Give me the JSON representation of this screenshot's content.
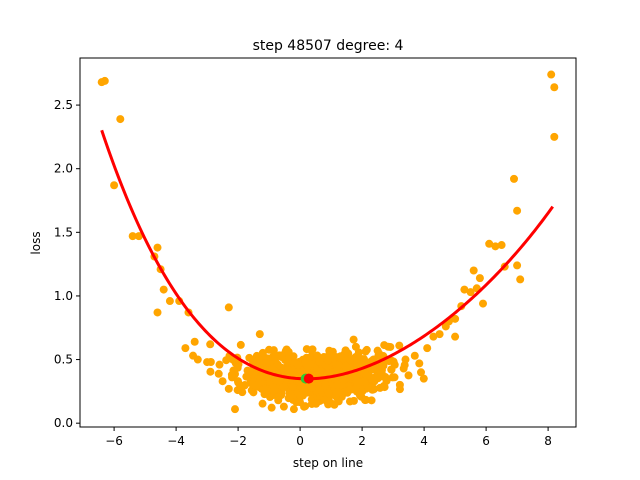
{
  "chart_data": {
    "type": "scatter",
    "title": "step 48507   degree: 4",
    "xlabel": "step on line",
    "ylabel": "loss",
    "xlim": [
      -7.1,
      8.9
    ],
    "ylim": [
      -0.03,
      2.87
    ],
    "xticks": [
      -6,
      -4,
      -2,
      0,
      2,
      4,
      6,
      8
    ],
    "yticks": [
      0.0,
      0.5,
      1.0,
      1.5,
      2.0,
      2.5
    ],
    "xtick_labels": [
      "−6",
      "−4",
      "−2",
      "0",
      "2",
      "4",
      "6",
      "8"
    ],
    "ytick_labels": [
      "0.0",
      "0.5",
      "1.0",
      "1.5",
      "2.0",
      "2.5"
    ],
    "grid": false,
    "series": [
      {
        "kind": "scatter",
        "color": "#ffa500",
        "points": [
          [
            -6.4,
            2.68
          ],
          [
            -6.3,
            2.69
          ],
          [
            -5.8,
            2.39
          ],
          [
            -6.0,
            1.87
          ],
          [
            -5.4,
            1.47
          ],
          [
            -5.2,
            1.47
          ],
          [
            -4.6,
            1.38
          ],
          [
            -4.7,
            1.31
          ],
          [
            -4.5,
            1.21
          ],
          [
            -4.4,
            1.05
          ],
          [
            -4.2,
            0.96
          ],
          [
            -3.9,
            0.96
          ],
          [
            -4.6,
            0.87
          ],
          [
            -3.6,
            0.87
          ],
          [
            -3.7,
            0.59
          ],
          [
            -3.4,
            0.64
          ],
          [
            -3.3,
            0.5
          ],
          [
            -2.9,
            0.62
          ],
          [
            -3.0,
            0.48
          ],
          [
            -2.6,
            0.46
          ],
          [
            -2.3,
            0.91
          ],
          [
            -2.2,
            0.38
          ],
          [
            -2.5,
            0.33
          ],
          [
            -2.3,
            0.27
          ],
          [
            -2.1,
            0.11
          ],
          [
            -1.9,
            0.29
          ],
          [
            -1.3,
            0.7
          ],
          [
            -1.1,
            0.47
          ],
          [
            -0.6,
            0.52
          ],
          [
            -0.3,
            0.35
          ],
          [
            -0.2,
            0.11
          ],
          [
            0.0,
            0.22
          ],
          [
            0.4,
            0.58
          ],
          [
            0.9,
            0.49
          ],
          [
            1.2,
            0.3
          ],
          [
            1.5,
            0.44
          ],
          [
            1.8,
            0.6
          ],
          [
            2.1,
            0.39
          ],
          [
            2.3,
            0.48
          ],
          [
            2.4,
            0.34
          ],
          [
            2.5,
            0.57
          ],
          [
            3.2,
            0.61
          ],
          [
            3.4,
            0.5
          ],
          [
            3.7,
            0.53
          ],
          [
            3.9,
            0.4
          ],
          [
            4.1,
            0.59
          ],
          [
            4.3,
            0.68
          ],
          [
            4.5,
            0.7
          ],
          [
            4.7,
            0.76
          ],
          [
            4.8,
            0.8
          ],
          [
            5.0,
            0.68
          ],
          [
            5.0,
            0.82
          ],
          [
            5.2,
            0.92
          ],
          [
            5.3,
            1.05
          ],
          [
            5.5,
            1.03
          ],
          [
            5.7,
            1.06
          ],
          [
            5.9,
            0.94
          ],
          [
            5.8,
            1.14
          ],
          [
            5.6,
            1.2
          ],
          [
            6.1,
            1.41
          ],
          [
            6.3,
            1.39
          ],
          [
            6.5,
            1.4
          ],
          [
            6.6,
            1.23
          ],
          [
            6.9,
            1.92
          ],
          [
            7.0,
            1.67
          ],
          [
            7.1,
            1.13
          ],
          [
            7.0,
            1.24
          ],
          [
            8.1,
            2.74
          ],
          [
            8.2,
            2.64
          ],
          [
            8.2,
            2.25
          ]
        ]
      },
      {
        "kind": "line",
        "color": "#ff0000",
        "poly_coeffs": [
          0.35,
          -0.0123,
          0.0296,
          -0.00183,
          0.000108
        ],
        "x_range": [
          -6.4,
          8.15
        ]
      }
    ],
    "markers": [
      {
        "x": 0.28,
        "y": 0.35,
        "color": "#ff0000"
      },
      {
        "x": 0.18,
        "y": 0.35,
        "color": "#33cc33"
      }
    ],
    "cluster": {
      "color": "#ffa500",
      "center_x": 0.5,
      "center_y": 0.35,
      "spread_x": 1.15,
      "spread_y": 0.09,
      "count": 900
    }
  }
}
